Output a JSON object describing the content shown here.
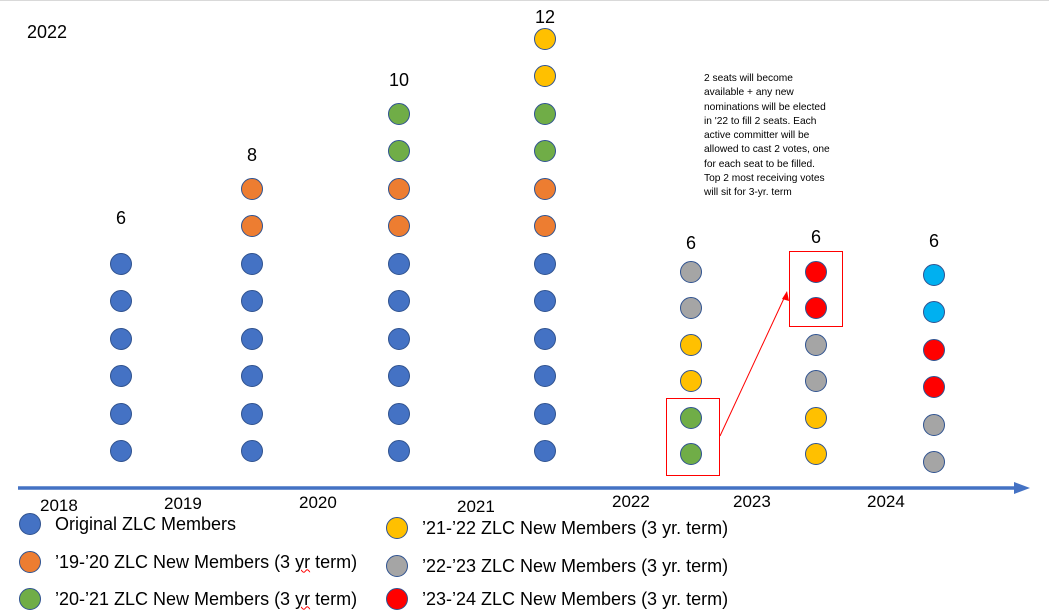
{
  "slide_label": "2022",
  "colors": {
    "original": "#4472c4",
    "t19_20": "#ed7d31",
    "t20_21": "#70ad47",
    "t21_22": "#ffc000",
    "t22_23": "#a5a5a5",
    "t23_24": "#ff0000",
    "new_24": "#00b0f0",
    "axis": "#4472c4"
  },
  "columns": [
    {
      "count": "6",
      "dots": [
        "original",
        "original",
        "original",
        "original",
        "original",
        "original"
      ]
    },
    {
      "count": "8",
      "dots": [
        "t19_20",
        "t19_20",
        "original",
        "original",
        "original",
        "original",
        "original",
        "original"
      ]
    },
    {
      "count": "10",
      "dots": [
        "t20_21",
        "t20_21",
        "t19_20",
        "t19_20",
        "original",
        "original",
        "original",
        "original",
        "original",
        "original"
      ]
    },
    {
      "count": "12",
      "dots": [
        "t21_22",
        "t21_22",
        "t20_21",
        "t20_21",
        "t19_20",
        "t19_20",
        "original",
        "original",
        "original",
        "original",
        "original",
        "original"
      ]
    },
    {
      "count": "6",
      "dots": [
        "t22_23",
        "t22_23",
        "t21_22",
        "t21_22",
        "t20_21",
        "t20_21"
      ]
    },
    {
      "count": "6",
      "dots": [
        "t23_24",
        "t23_24",
        "t22_23",
        "t22_23",
        "t21_22",
        "t21_22"
      ]
    },
    {
      "count": "6",
      "dots": [
        "new_24",
        "new_24",
        "t23_24",
        "t23_24",
        "t22_23",
        "t22_23"
      ]
    }
  ],
  "years": [
    "2018",
    "2019",
    "2020",
    "2021",
    "2022",
    "2023",
    "2024"
  ],
  "note": "2 seats will become available + any new nominations will be elected in '22 to fill 2 seats. Each active committer will be allowed to cast 2 votes, one for each seat to be filled. Top 2 most receiving votes will sit for 3-yr. term",
  "legend": [
    {
      "key": "original",
      "text_before": "Original ZLC Members",
      "squiggle": "",
      "text_after": ""
    },
    {
      "key": "t19_20",
      "text_before": "’19-’20 ZLC New Members (3 ",
      "squiggle": "yr",
      "text_after": " term)"
    },
    {
      "key": "t20_21",
      "text_before": "’20-’21 ZLC New Members (3 ",
      "squiggle": "yr",
      "text_after": " term)"
    },
    {
      "key": "t21_22",
      "text_before": "’21-’22 ZLC New Members (3 yr. term)",
      "squiggle": "",
      "text_after": ""
    },
    {
      "key": "t22_23",
      "text_before": "’22-’23 ZLC New Members (3 yr. term)",
      "squiggle": "",
      "text_after": ""
    },
    {
      "key": "t23_24",
      "text_before": "’23-’24 ZLC New Members (3 yr. term)",
      "squiggle": "",
      "text_after": ""
    }
  ]
}
